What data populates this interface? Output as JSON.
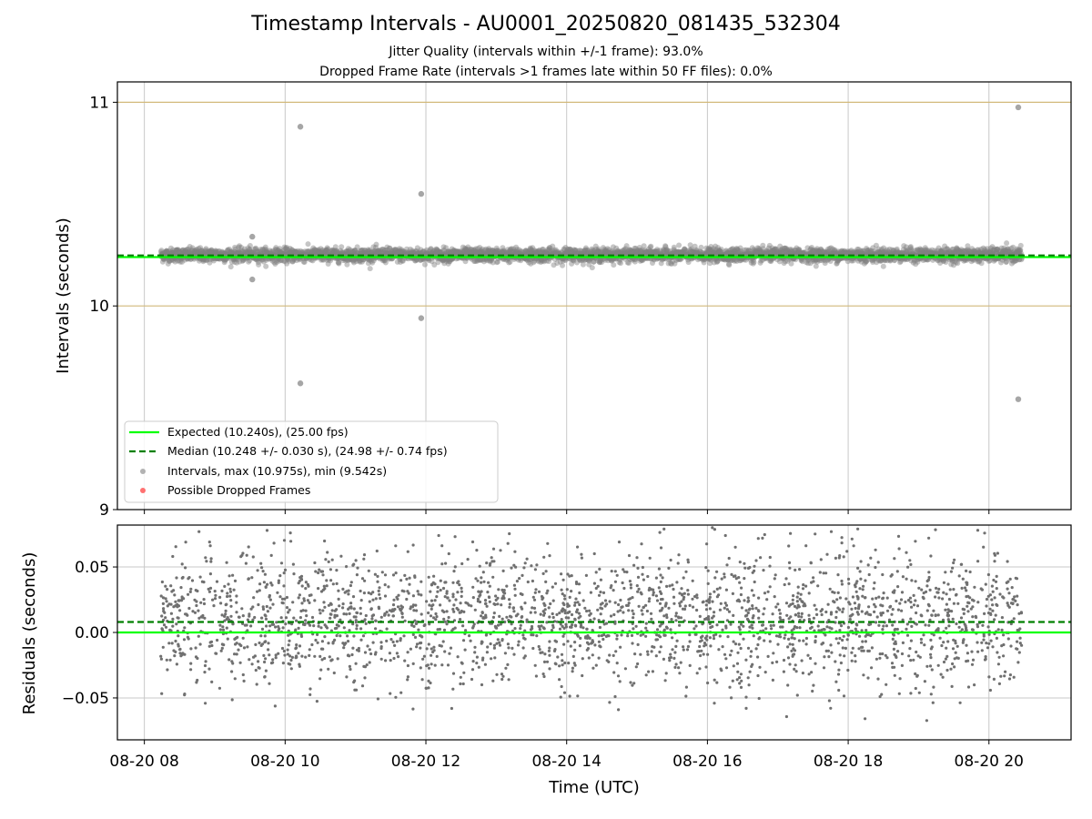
{
  "chart_data": [
    {
      "type": "scatter",
      "title": "Timestamp Intervals - AU0001_20250820_081435_532304",
      "subtitles": [
        "Jitter Quality (intervals within +/-1 frame): 93.0%",
        "Dropped Frame Rate (intervals >1 frames late within 50 FF files): 0.0%"
      ],
      "xlabel": "",
      "ylabel": "Intervals (seconds)",
      "xlim": [
        "2025-08-20 07:37",
        "2025-08-20 21:10"
      ],
      "ylim": [
        9,
        11.1
      ],
      "yticks": [
        9,
        10,
        11
      ],
      "ytick_labels": [
        "9",
        "10",
        "11"
      ],
      "grid": "vertical",
      "hlines": [
        {
          "y": 10,
          "color": "#d2b97a"
        },
        {
          "y": 11,
          "color": "#d2b97a"
        }
      ],
      "expected": {
        "label": "Expected (10.240s), (25.00 fps)",
        "value": 10.24,
        "color": "#00ff00"
      },
      "median": {
        "label": "Median (10.248 +/- 0.030 s), (24.98 +/- 0.74 fps)",
        "value": 10.248,
        "std": 0.03,
        "color": "#008000"
      },
      "intervals": {
        "label": "Intervals, max (10.975s), min (9.542s)",
        "color": "#808080",
        "time_range": [
          "2025-08-20 08:14",
          "2025-08-20 20:28"
        ],
        "count": 4300,
        "max": 10.975,
        "min": 9.542,
        "typical_mean": 10.25,
        "typical_std": 0.03,
        "outliers": [
          {
            "x": "2025-08-20 09:32",
            "y": 10.13
          },
          {
            "x": "2025-08-20 09:32",
            "y": 10.34
          },
          {
            "x": "2025-08-20 10:13",
            "y": 10.88
          },
          {
            "x": "2025-08-20 10:13",
            "y": 9.62
          },
          {
            "x": "2025-08-20 11:56",
            "y": 10.55
          },
          {
            "x": "2025-08-20 11:56",
            "y": 9.94
          },
          {
            "x": "2025-08-20 20:25",
            "y": 10.975
          },
          {
            "x": "2025-08-20 20:25",
            "y": 9.542
          }
        ]
      },
      "dropped": {
        "label": "Possible Dropped Frames",
        "color": "#ff4d4d",
        "points": []
      },
      "legend": "lower-left"
    },
    {
      "type": "scatter",
      "xlabel": "Time (UTC)",
      "ylabel": "Residuals (seconds)",
      "xlim": [
        "2025-08-20 07:37",
        "2025-08-20 21:10"
      ],
      "xticks": [
        "2025-08-20 08:00",
        "2025-08-20 10:00",
        "2025-08-20 12:00",
        "2025-08-20 14:00",
        "2025-08-20 16:00",
        "2025-08-20 18:00",
        "2025-08-20 20:00"
      ],
      "xtick_labels": [
        "08-20 08",
        "08-20 10",
        "08-20 12",
        "08-20 14",
        "08-20 16",
        "08-20 18",
        "08-20 20"
      ],
      "ylim": [
        -0.082,
        0.082
      ],
      "yticks": [
        -0.05,
        0,
        0.05
      ],
      "ytick_labels": [
        "−0.05",
        "0.00",
        "0.05"
      ],
      "grid": "both",
      "expected_residual": 0,
      "median_residual": 0.008,
      "points": {
        "color": "#707070",
        "time_range": [
          "2025-08-20 08:14",
          "2025-08-20 20:28"
        ],
        "count": 2600,
        "typical_mean": 0.01,
        "typical_std": 0.025,
        "ylim_clip": [
          -0.08,
          0.08
        ]
      }
    }
  ]
}
